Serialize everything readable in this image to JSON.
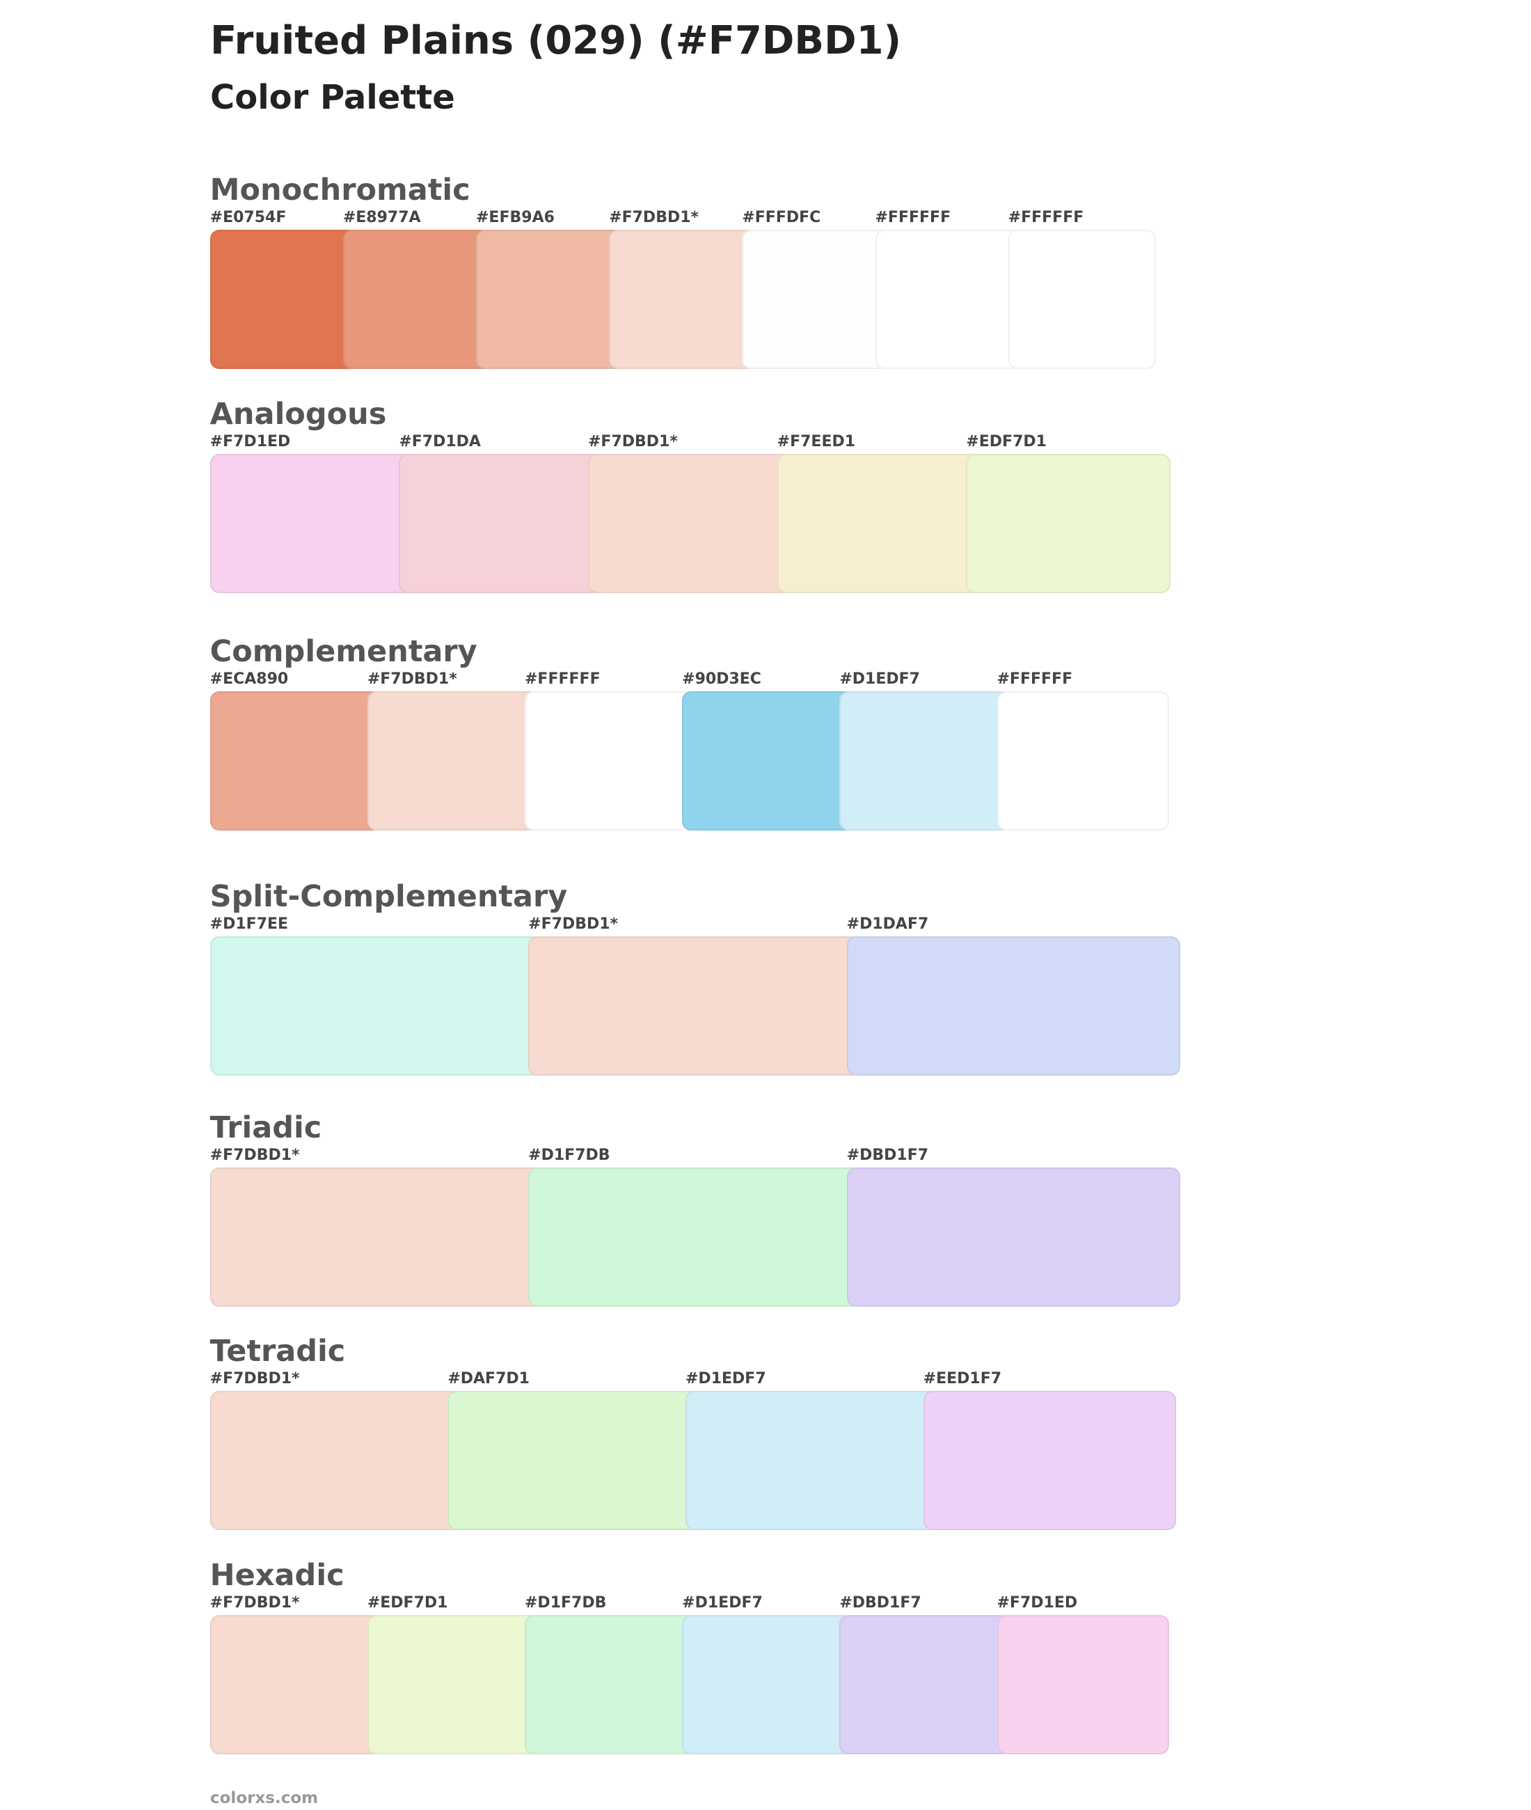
{
  "header": {
    "title": "Fruited Plains (029) (#F7DBD1)",
    "subtitle": "Color Palette"
  },
  "sections": [
    {
      "name": "Monochromatic",
      "swatches": [
        {
          "label": "#E0754F",
          "color": "#E0754F"
        },
        {
          "label": "#E8977A",
          "color": "#E8977A"
        },
        {
          "label": "#EFB9A6",
          "color": "#EFB9A6"
        },
        {
          "label": "#F7DBD1*",
          "color": "#F7DBD1"
        },
        {
          "label": "#FFFDFC",
          "color": "#FFFDFC"
        },
        {
          "label": "#FFFFFF",
          "color": "#FFFFFF"
        },
        {
          "label": "#FFFFFF",
          "color": "#FFFFFF"
        }
      ]
    },
    {
      "name": "Analogous",
      "swatches": [
        {
          "label": "#F7D1ED",
          "color": "#F7D1ED"
        },
        {
          "label": "#F7D1DA",
          "color": "#F7D1DA"
        },
        {
          "label": "#F7DBD1*",
          "color": "#F7DBD1"
        },
        {
          "label": "#F7EED1",
          "color": "#F7EED1"
        },
        {
          "label": "#EDF7D1",
          "color": "#EDF7D1"
        }
      ]
    },
    {
      "name": "Complementary",
      "swatches": [
        {
          "label": "#ECA890",
          "color": "#ECA890"
        },
        {
          "label": "#F7DBD1*",
          "color": "#F7DBD1"
        },
        {
          "label": "#FFFFFF",
          "color": "#FFFFFF"
        },
        {
          "label": "#90D3EC",
          "color": "#90D3EC"
        },
        {
          "label": "#D1EDF7",
          "color": "#D1EDF7"
        },
        {
          "label": "#FFFFFF",
          "color": "#FFFFFF"
        }
      ]
    },
    {
      "name": "Split-Complementary",
      "swatches": [
        {
          "label": "#D1F7EE",
          "color": "#D1F7EE"
        },
        {
          "label": "#F7DBD1*",
          "color": "#F7DBD1"
        },
        {
          "label": "#D1DAF7",
          "color": "#D1DAF7"
        }
      ]
    },
    {
      "name": "Triadic",
      "swatches": [
        {
          "label": "#F7DBD1*",
          "color": "#F7DBD1"
        },
        {
          "label": "#D1F7DB",
          "color": "#D1F7DB"
        },
        {
          "label": "#DBD1F7",
          "color": "#DBD1F7"
        }
      ]
    },
    {
      "name": "Tetradic",
      "swatches": [
        {
          "label": "#F7DBD1*",
          "color": "#F7DBD1"
        },
        {
          "label": "#DAF7D1",
          "color": "#DAF7D1"
        },
        {
          "label": "#D1EDF7",
          "color": "#D1EDF7"
        },
        {
          "label": "#EED1F7",
          "color": "#EED1F7"
        }
      ]
    },
    {
      "name": "Hexadic",
      "swatches": [
        {
          "label": "#F7DBD1*",
          "color": "#F7DBD1"
        },
        {
          "label": "#EDF7D1",
          "color": "#EDF7D1"
        },
        {
          "label": "#D1F7DB",
          "color": "#D1F7DB"
        },
        {
          "label": "#D1EDF7",
          "color": "#D1EDF7"
        },
        {
          "label": "#DBD1F7",
          "color": "#DBD1F7"
        },
        {
          "label": "#F7D1ED",
          "color": "#F7D1ED"
        }
      ]
    }
  ],
  "footer": "colorxs.com"
}
